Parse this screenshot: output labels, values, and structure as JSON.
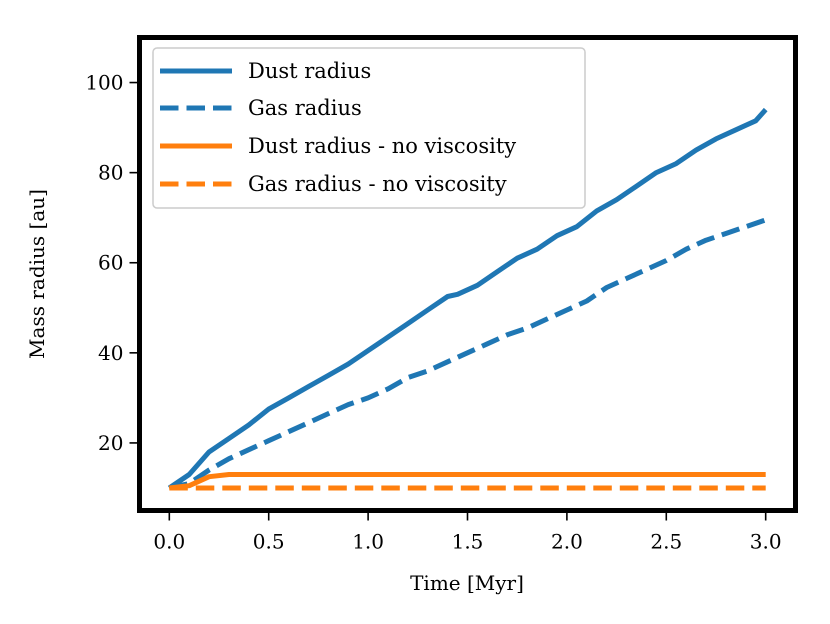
{
  "chart_data": {
    "type": "line",
    "title": "",
    "xlabel": "Time [Myr]",
    "ylabel": "Mass radius [au]",
    "xlim": [
      -0.15,
      3.15
    ],
    "ylim": [
      5,
      110
    ],
    "xticks": [
      0.0,
      0.5,
      1.0,
      1.5,
      2.0,
      2.5,
      3.0
    ],
    "xtick_labels": [
      "0.0",
      "0.5",
      "1.0",
      "1.5",
      "2.0",
      "2.5",
      "3.0"
    ],
    "yticks": [
      20,
      40,
      60,
      80,
      100
    ],
    "ytick_labels": [
      "20",
      "40",
      "60",
      "80",
      "100"
    ],
    "grid": false,
    "legend_position": "top-left",
    "series": [
      {
        "name": "Dust radius",
        "color": "#1f77b4",
        "style": "solid",
        "x": [
          0.0,
          0.1,
          0.2,
          0.3,
          0.4,
          0.5,
          0.6,
          0.7,
          0.8,
          0.9,
          1.0,
          1.1,
          1.2,
          1.3,
          1.4,
          1.45,
          1.55,
          1.65,
          1.75,
          1.85,
          1.95,
          2.05,
          2.15,
          2.25,
          2.35,
          2.45,
          2.55,
          2.65,
          2.75,
          2.85,
          2.95,
          3.0
        ],
        "values": [
          10,
          13,
          18,
          21,
          24,
          27.5,
          30,
          32.5,
          35,
          37.5,
          40.5,
          43.5,
          46.5,
          49.5,
          52.5,
          53,
          55,
          58,
          61,
          63,
          66,
          68,
          71.5,
          74,
          77,
          80,
          82,
          85,
          87.5,
          89.5,
          91.5,
          94
        ]
      },
      {
        "name": "Gas radius",
        "color": "#1f77b4",
        "style": "dashed",
        "x": [
          0.0,
          0.1,
          0.2,
          0.3,
          0.4,
          0.5,
          0.6,
          0.7,
          0.8,
          0.9,
          1.0,
          1.1,
          1.2,
          1.3,
          1.4,
          1.5,
          1.6,
          1.7,
          1.8,
          1.9,
          2.0,
          2.1,
          2.2,
          2.3,
          2.4,
          2.5,
          2.6,
          2.7,
          2.8,
          2.9,
          3.0
        ],
        "values": [
          10,
          11,
          14,
          16.5,
          18.5,
          20.5,
          22.5,
          24.5,
          26.5,
          28.5,
          30,
          32,
          34.5,
          36,
          38,
          40,
          42,
          44,
          45.5,
          47.5,
          49.5,
          51.5,
          54.5,
          56.5,
          58.5,
          60.5,
          63,
          65,
          66.5,
          68,
          69.5
        ]
      },
      {
        "name": "Dust radius - no viscosity",
        "color": "#ff7f0e",
        "style": "solid",
        "x": [
          0.0,
          0.1,
          0.2,
          0.3,
          0.5,
          1.0,
          1.5,
          2.0,
          2.5,
          3.0
        ],
        "values": [
          10,
          10.5,
          12.5,
          13,
          13,
          13,
          13,
          13,
          13,
          13
        ]
      },
      {
        "name": "Gas radius - no viscosity",
        "color": "#ff7f0e",
        "style": "dashed",
        "x": [
          0.0,
          0.5,
          1.0,
          1.5,
          2.0,
          2.5,
          3.0
        ],
        "values": [
          10,
          10,
          10,
          10,
          10,
          10,
          10
        ]
      }
    ]
  }
}
